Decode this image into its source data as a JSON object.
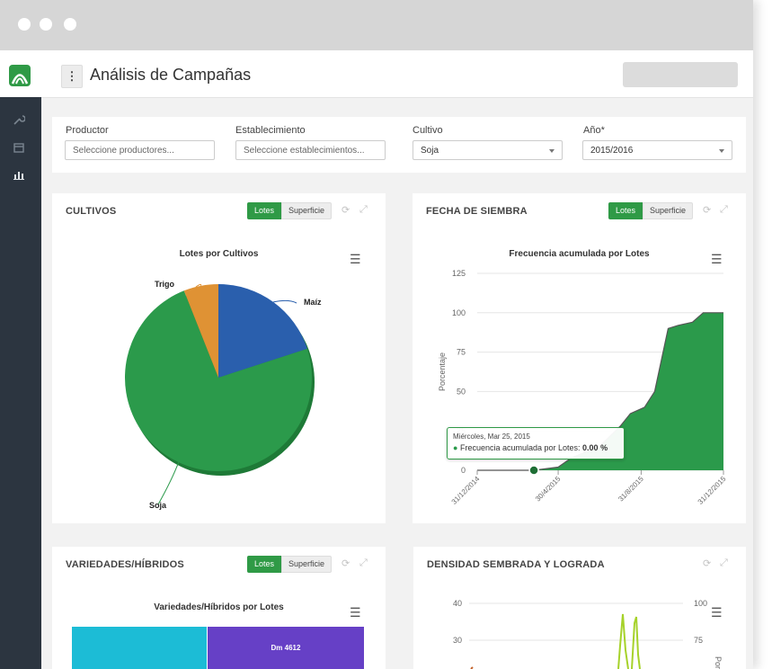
{
  "window": {
    "controls": [
      "close",
      "minimize",
      "maximize"
    ]
  },
  "header": {
    "title": "Análisis de Campañas",
    "menu_icon": "vertical-dots-icon"
  },
  "sidebar": {
    "items": [
      {
        "icon": "wrench-icon"
      },
      {
        "icon": "calendar-icon"
      },
      {
        "icon": "bar-chart-icon"
      }
    ]
  },
  "filters": {
    "productor": {
      "label": "Productor",
      "placeholder": "Seleccione productores..."
    },
    "establecimiento": {
      "label": "Establecimiento",
      "placeholder": "Seleccione establecimientos..."
    },
    "cultivo": {
      "label": "Cultivo",
      "value": "Soja"
    },
    "anio": {
      "label": "Año*",
      "value": "2015/2016"
    }
  },
  "toggle": {
    "on": "Lotes",
    "off": "Superficie"
  },
  "panels": {
    "cultivos": {
      "title": "CULTIVOS",
      "chart_title": "Lotes por Cultivos"
    },
    "siembra": {
      "title": "FECHA DE SIEMBRA",
      "chart_title": "Frecuencia acumulada por Lotes",
      "ylabel": "Porcentaje",
      "tooltip": {
        "date": "Miércoles, Mar 25, 2015",
        "label": "Frecuencia acumulada por Lotes:",
        "value": "0.00 %"
      }
    },
    "variedades": {
      "title": "VARIEDADES/HÍBRIDOS",
      "chart_title": "Variedades/Híbridos por Lotes",
      "bar_label": "Dm 4612"
    },
    "densidad": {
      "title": "DENSIDAD SEMBRADA Y LOGRADA",
      "left_ticks": [
        "40",
        "30"
      ],
      "right_ticks": [
        "100",
        "75"
      ],
      "right_axis_label": "Por"
    }
  },
  "chart_data": [
    {
      "type": "pie",
      "title": "Lotes por Cultivos",
      "categories": [
        "Maíz",
        "Soja",
        "Trigo"
      ],
      "values": [
        20,
        74,
        6
      ],
      "colors": [
        "#2a5fad",
        "#2b9a4b",
        "#df9234"
      ]
    },
    {
      "type": "area",
      "title": "Frecuencia acumulada por Lotes",
      "ylabel": "Porcentaje",
      "ylim": [
        0,
        125
      ],
      "yticks": [
        0,
        25,
        50,
        75,
        100,
        125
      ],
      "xtick_labels": [
        "31/12/2014",
        "30/4/2015",
        "31/8/2015",
        "31/12/2015"
      ],
      "x": [
        "2014-12-31",
        "2015-03-25",
        "2015-04-30",
        "2015-05-20",
        "2015-06-30",
        "2015-07-31",
        "2015-08-15",
        "2015-09-05",
        "2015-09-20",
        "2015-09-30",
        "2015-10-10",
        "2015-10-25",
        "2015-11-15",
        "2015-12-01",
        "2015-12-31"
      ],
      "y": [
        0,
        0,
        2,
        8,
        15,
        28,
        36,
        40,
        50,
        70,
        90,
        92,
        94,
        100,
        100
      ],
      "color": "#2b9a4b",
      "grid": true
    }
  ]
}
